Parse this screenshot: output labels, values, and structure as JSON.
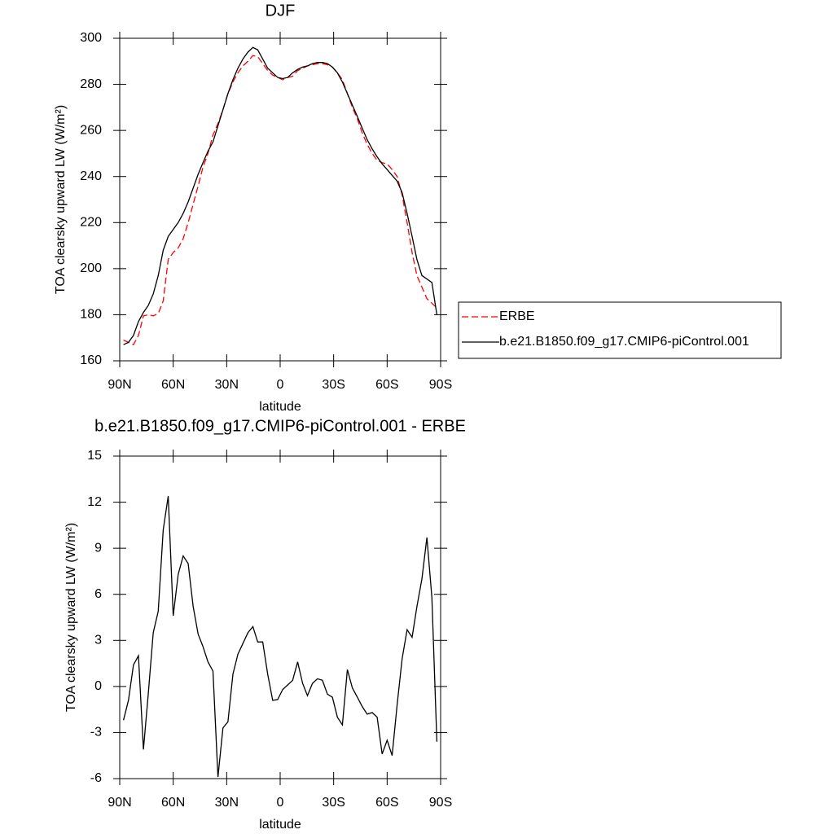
{
  "chart_data": [
    {
      "type": "line",
      "title": "DJF",
      "xlabel": "latitude",
      "ylabel": "TOA clearsky upward LW (W/m²)",
      "x": [
        87.9,
        85.1,
        82.3,
        79.5,
        76.7,
        74.0,
        71.2,
        68.4,
        65.6,
        62.8,
        60.0,
        57.2,
        54.4,
        51.6,
        48.8,
        46.0,
        43.3,
        40.5,
        37.7,
        34.9,
        32.1,
        29.3,
        26.5,
        23.7,
        20.9,
        18.1,
        15.3,
        12.6,
        9.8,
        7.0,
        4.2,
        1.4,
        -1.4,
        -4.2,
        -7.0,
        -9.8,
        -12.6,
        -15.3,
        -18.1,
        -20.9,
        -23.7,
        -26.5,
        -29.3,
        -32.1,
        -34.9,
        -37.7,
        -40.5,
        -43.3,
        -46.0,
        -48.8,
        -51.6,
        -54.4,
        -57.2,
        -60.0,
        -62.8,
        -65.6,
        -68.4,
        -71.2,
        -74.0,
        -76.7,
        -79.5,
        -82.3,
        -85.1,
        -87.9
      ],
      "series": [
        {
          "name": "ERBE",
          "color": "#ff0000",
          "line_style": "dashed",
          "values": [
            169,
            168,
            167,
            171,
            179.5,
            180,
            179.5,
            180.5,
            186,
            204,
            207,
            209,
            213,
            220,
            228,
            236,
            244,
            250,
            258,
            263,
            269,
            276,
            281,
            285,
            288,
            290,
            292.5,
            292,
            289,
            286,
            284,
            283,
            282,
            283,
            283.5,
            286,
            287,
            288,
            288.5,
            289,
            289,
            288.5,
            287.5,
            285,
            282,
            276,
            270,
            265,
            259,
            254,
            250,
            247,
            246,
            245.5,
            243,
            240,
            232,
            220,
            207,
            197,
            192,
            187,
            185,
            183
          ]
        },
        {
          "name": "b.e21.B1850.f09_g17.CMIP6-piControl.001",
          "color": "#000000",
          "line_style": "solid",
          "values": [
            167,
            168,
            171,
            177,
            181,
            184,
            189,
            197,
            208,
            214,
            217,
            220,
            224,
            229,
            235,
            241,
            246,
            251,
            255,
            262,
            269,
            276,
            282,
            287,
            291,
            294,
            296,
            295,
            291,
            287,
            285,
            283,
            282.5,
            283,
            285,
            286.5,
            287.5,
            288,
            289,
            289.5,
            289.5,
            289,
            287.5,
            285,
            281,
            276,
            271,
            266,
            261,
            256,
            252,
            248.5,
            245.5,
            243,
            240.5,
            238,
            233,
            224,
            214,
            204,
            197,
            195.5,
            194,
            180
          ]
        }
      ],
      "xlim": [
        90,
        -90
      ],
      "xticks": [
        {
          "value": 90,
          "label": "90N"
        },
        {
          "value": 60,
          "label": "60N"
        },
        {
          "value": 30,
          "label": "30N"
        },
        0,
        {
          "value": -30,
          "label": "30S"
        },
        {
          "value": -60,
          "label": "60S"
        },
        {
          "value": -90,
          "label": "90S"
        }
      ],
      "ylim": [
        160,
        300
      ],
      "yticks": [
        160,
        180,
        200,
        220,
        240,
        260,
        280,
        300
      ],
      "legend": "right"
    },
    {
      "type": "line",
      "title": "b.e21.B1850.f09_g17.CMIP6-piControl.001 - ERBE",
      "xlabel": "latitude",
      "ylabel": "TOA clearsky upward LW (W/m²)",
      "x": [
        87.9,
        85.1,
        82.3,
        79.5,
        76.7,
        74.0,
        71.2,
        68.4,
        65.6,
        62.8,
        60.0,
        57.2,
        54.4,
        51.6,
        48.8,
        46.0,
        43.3,
        40.5,
        37.7,
        34.9,
        32.1,
        29.3,
        26.5,
        23.7,
        20.9,
        18.1,
        15.3,
        12.6,
        9.8,
        7.0,
        4.2,
        1.4,
        -1.4,
        -4.2,
        -7.0,
        -9.8,
        -12.6,
        -15.3,
        -18.1,
        -20.9,
        -23.7,
        -26.5,
        -29.3,
        -32.1,
        -34.9,
        -37.7,
        -40.5,
        -43.3,
        -46.0,
        -48.8,
        -51.6,
        -54.4,
        -57.2,
        -60.0,
        -62.8,
        -65.6,
        -68.4,
        -71.2,
        -74.0,
        -76.7,
        -79.5,
        -82.3,
        -85.1,
        -87.9
      ],
      "values": [
        -2.2,
        -0.9,
        1.4,
        2.0,
        -4.1,
        -0.5,
        3.5,
        4.9,
        10.2,
        12.4,
        4.6,
        7.3,
        8.5,
        8.0,
        5.2,
        3.4,
        2.6,
        1.6,
        1.0,
        -5.9,
        -2.7,
        -2.3,
        0.8,
        2.1,
        2.8,
        3.5,
        3.9,
        2.9,
        2.9,
        0.8,
        -0.9,
        -0.85,
        -0.2,
        0.1,
        0.4,
        1.6,
        0.2,
        -0.6,
        0.2,
        0.5,
        0.4,
        -0.5,
        -0.7,
        -2.0,
        -2.5,
        1.1,
        -0.1,
        -0.7,
        -1.3,
        -1.8,
        -1.7,
        -2.0,
        -4.4,
        -3.5,
        -4.5,
        -1.2,
        1.8,
        3.7,
        3.2,
        5.2,
        7.0,
        9.7,
        5.8,
        -3.6
      ],
      "color": "#000000",
      "xlim": [
        90,
        -90
      ],
      "xticks": [
        {
          "value": 90,
          "label": "90N"
        },
        {
          "value": 60,
          "label": "60N"
        },
        {
          "value": 30,
          "label": "30N"
        },
        0,
        {
          "value": -30,
          "label": "30S"
        },
        {
          "value": -60,
          "label": "60S"
        },
        {
          "value": -90,
          "label": "90S"
        }
      ],
      "ylim": [
        -6,
        15
      ],
      "yticks": [
        -6,
        -3,
        0,
        3,
        6,
        9,
        12,
        15
      ]
    }
  ]
}
